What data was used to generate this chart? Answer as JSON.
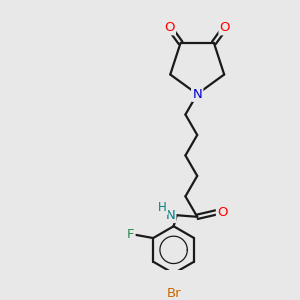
{
  "background_color": "#e8e8e8",
  "bond_color": "#1a1a1a",
  "atom_colors": {
    "O": "#ff0000",
    "N_amide": "#008080",
    "N_succinimide": "#0000cc",
    "F": "#2e8b57",
    "Br": "#cc6600",
    "C": "#1a1a1a",
    "H": "#008080"
  },
  "lw": 1.6,
  "fs": 8.5
}
